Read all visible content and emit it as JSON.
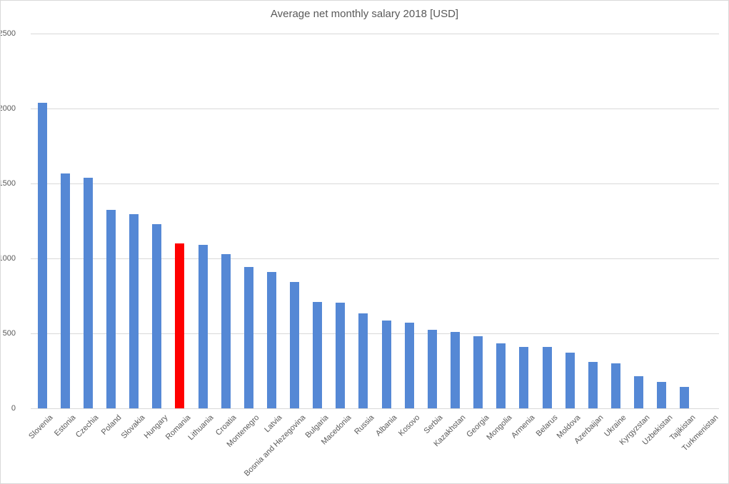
{
  "chart_data": {
    "type": "bar",
    "title": "Average net monthly salary 2018 [USD]",
    "categories": [
      "Slovenia",
      "Estonia",
      "Czechia",
      "Poland",
      "Slovakia",
      "Hungary",
      "Romania",
      "Lithuania",
      "Croatia",
      "Montenegro",
      "Latvia",
      "Bosnia and Hezegovina",
      "Bulgaria",
      "Macedonia",
      "Russia",
      "Albania",
      "Kosovo",
      "Serbia",
      "Kazakhstan",
      "Georgia",
      "Mongolia",
      "Armenia",
      "Belarus",
      "Moldova",
      "Azerbaijan",
      "Ukraine",
      "Kyrgyzstan",
      "Uzbekistan",
      "Tajikistan",
      "Turkmenistan"
    ],
    "values": [
      2040,
      1565,
      1540,
      1325,
      1295,
      1230,
      1100,
      1090,
      1030,
      945,
      910,
      845,
      710,
      705,
      635,
      585,
      570,
      525,
      510,
      480,
      435,
      410,
      410,
      370,
      310,
      300,
      215,
      175,
      145,
      0
    ],
    "highlight_category": "Romania",
    "bar_color": "#5588d5",
    "highlight_color": "#ff0000",
    "xlabel": "",
    "ylabel": "",
    "ylim": [
      0,
      2500
    ],
    "yticks": [
      0,
      500,
      1000,
      1500,
      2000,
      2500
    ],
    "grid": true,
    "legend": false,
    "colors": {
      "gridline": "#d9d9d9",
      "axis_text": "#595959",
      "title_text": "#595959",
      "border": "#d9d9d9",
      "background": "#ffffff"
    }
  }
}
